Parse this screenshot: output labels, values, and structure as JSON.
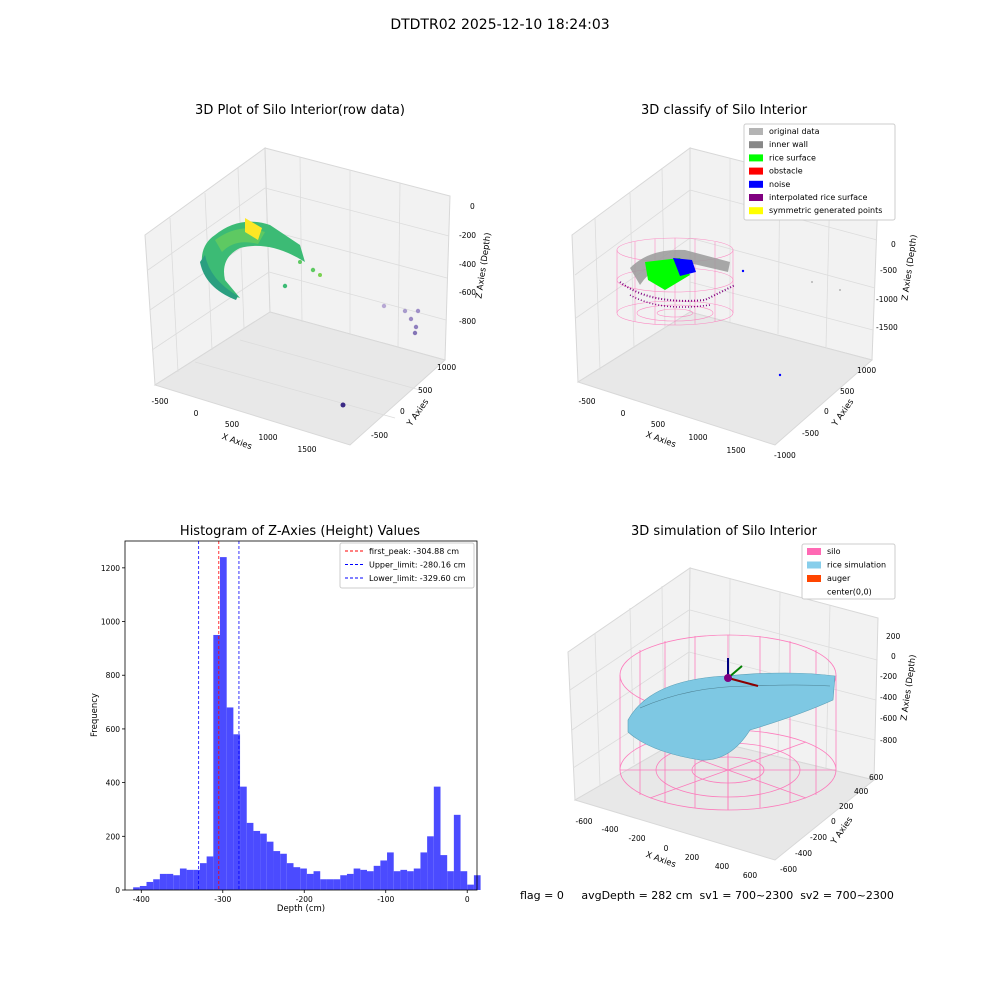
{
  "suptitle": "DTDTR02 2025-12-10 18:24:03",
  "footer": "flag = 0     avgDepth = 282 cm  sv1 = 700~2300  sv2 = 700~2300",
  "colors": {
    "pink": "#ff69b4",
    "light_blue": "#7ec8e3",
    "orange_red": "#ff4500",
    "green": "#00ff00",
    "blue": "#0000ff",
    "gray": "#888888",
    "light_gray": "#b4b4b4",
    "red": "#ff0000",
    "purple": "#800080",
    "yellow": "#ffff00",
    "hist_bar": "#4b4bff"
  },
  "panels": {
    "raw": {
      "title": "3D Plot of Silo Interior(row data)",
      "x_label": "X Axies",
      "y_label": "Y Axies",
      "z_label": "Z Axies (Depth)",
      "x_ticks": [
        "-500",
        "0",
        "500",
        "1000",
        "1500"
      ],
      "y_ticks": [
        "-500",
        "0",
        "500",
        "1000"
      ],
      "z_ticks": [
        "0",
        "-200",
        "-400",
        "-600",
        "-800"
      ]
    },
    "classify": {
      "title": "3D classify of Silo Interior",
      "x_label": "X Axies",
      "y_label": "Y Axies",
      "z_label": "Z Axies (Depth)",
      "x_ticks": [
        "-500",
        "0",
        "500",
        "1000",
        "1500"
      ],
      "y_ticks": [
        "-1000",
        "-500",
        "0",
        "500",
        "1000"
      ],
      "z_ticks": [
        "500",
        "0",
        "-500",
        "-1000",
        "-1500"
      ],
      "legend": [
        {
          "label": "original data",
          "color": "#b4b4b4"
        },
        {
          "label": "inner wall",
          "color": "#888888"
        },
        {
          "label": "rice surface",
          "color": "#00ff00"
        },
        {
          "label": "obstacle",
          "color": "#ff0000"
        },
        {
          "label": "noise",
          "color": "#0000ff"
        },
        {
          "label": "interpolated rice surface",
          "color": "#800080"
        },
        {
          "label": "symmetric generated points",
          "color": "#ffff00"
        }
      ]
    },
    "simulation": {
      "title": "3D simulation of Silo Interior",
      "x_label": "X Axies",
      "y_label": "Y Axies",
      "z_label": "Z Axies (Depth)",
      "x_ticks": [
        "-600",
        "-400",
        "-200",
        "0",
        "200",
        "400",
        "600"
      ],
      "y_ticks": [
        "-600",
        "-400",
        "-200",
        "0",
        "200",
        "400",
        "600"
      ],
      "z_ticks": [
        "200",
        "0",
        "-200",
        "-400",
        "-600",
        "-800"
      ],
      "legend": [
        {
          "label": "silo",
          "color": "#ff69b4"
        },
        {
          "label": "rice simulation",
          "color": "#87ceeb"
        },
        {
          "label": "auger",
          "color": "#ff4500"
        },
        {
          "label": "center(0,0)",
          "color": ""
        }
      ]
    }
  },
  "chart_data": [
    {
      "type": "bar",
      "title": "Histogram of Z-Axies (Height) Values",
      "xlabel": "Depth (cm)",
      "ylabel": "Frequency",
      "xlim": [
        -420,
        12
      ],
      "ylim": [
        0,
        1300
      ],
      "x_ticks": [
        -400,
        -300,
        -200,
        -100,
        0
      ],
      "y_ticks": [
        0,
        200,
        400,
        600,
        800,
        1000,
        1200
      ],
      "bin_width": 8.2,
      "bin_start": -410,
      "values": [
        10,
        15,
        30,
        40,
        60,
        60,
        55,
        80,
        75,
        75,
        100,
        125,
        950,
        1240,
        680,
        580,
        385,
        250,
        220,
        210,
        180,
        145,
        135,
        100,
        85,
        80,
        60,
        70,
        40,
        40,
        40,
        55,
        60,
        80,
        75,
        70,
        90,
        110,
        140,
        70,
        75,
        70,
        80,
        140,
        200,
        385,
        130,
        70,
        280,
        70,
        20,
        55
      ],
      "vlines": [
        {
          "x": -304.88,
          "label": "first_peak: -304.88 cm",
          "color": "#ff0000"
        },
        {
          "x": -280.16,
          "label": "Upper_limit: -280.16 cm",
          "color": "#0000ff"
        },
        {
          "x": -329.6,
          "label": "Lower_limit: -329.60 cm",
          "color": "#0000ff"
        }
      ],
      "legend_position": "top-right"
    }
  ]
}
